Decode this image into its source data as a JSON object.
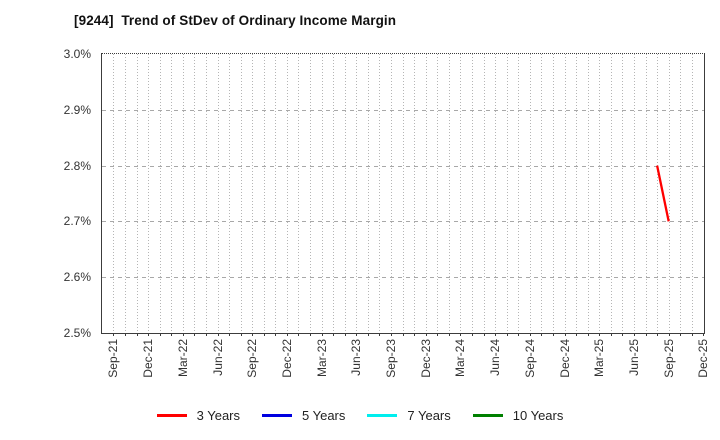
{
  "chart_data": {
    "type": "line",
    "title": "[9244]  Trend of StDev of Ordinary Income Margin",
    "xlabel": "",
    "ylabel": "",
    "x_start": "Sep-21",
    "x_end": "Dec-25",
    "x_unit": "month",
    "x_tick_interval_months": 3,
    "x_tick_labels": [
      "Sep-21",
      "Dec-21",
      "Mar-22",
      "Jun-22",
      "Sep-22",
      "Dec-22",
      "Mar-23",
      "Jun-23",
      "Sep-23",
      "Dec-23",
      "Mar-24",
      "Jun-24",
      "Sep-24",
      "Dec-24",
      "Mar-25",
      "Jun-25",
      "Sep-25",
      "Dec-25"
    ],
    "ylim": [
      2.5,
      3.0
    ],
    "y_ticks": [
      {
        "value": 2.5,
        "label": "2.5%"
      },
      {
        "value": 2.6,
        "label": "2.6%"
      },
      {
        "value": 2.7,
        "label": "2.7%"
      },
      {
        "value": 2.8,
        "label": "2.8%"
      },
      {
        "value": 2.9,
        "label": "2.9%"
      },
      {
        "value": 3.0,
        "label": "3.0%"
      }
    ],
    "grid": {
      "horizontal": "dashed",
      "vertical": "dotted",
      "vertical_interval": "monthly"
    },
    "legend_position": "bottom",
    "series": [
      {
        "name": "3 Years",
        "color": "#ff0000",
        "points": [
          {
            "x": "Aug-25",
            "y": 2.8
          },
          {
            "x": "Sep-25",
            "y": 2.7
          }
        ]
      },
      {
        "name": "5 Years",
        "color": "#0000e0",
        "points": []
      },
      {
        "name": "7 Years",
        "color": "#00eeee",
        "points": []
      },
      {
        "name": "10 Years",
        "color": "#008000",
        "points": []
      }
    ]
  }
}
